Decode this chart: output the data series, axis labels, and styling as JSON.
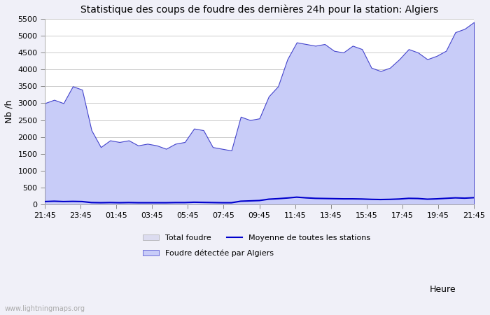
{
  "title": "Statistique des coups de foudre des dernières 24h pour la station: Algiers",
  "ylabel": "Nb /h",
  "xlabel": "Heure",
  "watermark": "www.lightningmaps.org",
  "x_labels": [
    "21:45",
    "23:45",
    "01:45",
    "03:45",
    "05:45",
    "07:45",
    "09:45",
    "11:45",
    "13:45",
    "15:45",
    "17:45",
    "19:45",
    "21:45"
  ],
  "ylim": [
    0,
    5500
  ],
  "yticks": [
    0,
    500,
    1000,
    1500,
    2000,
    2500,
    3000,
    3500,
    4000,
    4500,
    5000,
    5500
  ],
  "bg_color": "#f0f0f8",
  "plot_bg_color": "#ffffff",
  "grid_color": "#cccccc",
  "total_foudre_color": "#dcdcf0",
  "algiers_fill_color": "#c8ccf8",
  "algiers_edge_color": "#4444cc",
  "mean_line_color": "#0000cc",
  "total_foudre_values": [
    3000,
    3100,
    3000,
    3500,
    3400,
    2200,
    1700,
    1900,
    1850,
    1900,
    1750,
    1800,
    1750,
    1650,
    1800,
    1850,
    2250,
    2200,
    1700,
    1650,
    1600,
    2600,
    2500,
    2550,
    3200,
    3500,
    4300,
    4800,
    4750,
    4700,
    4750,
    4550,
    4500,
    4700,
    4600,
    4050,
    3950,
    4050,
    4300,
    4600,
    4500,
    4300,
    4400,
    4550,
    5100,
    5200,
    5400
  ],
  "algiers_values": [
    3000,
    3100,
    3000,
    3500,
    3400,
    2200,
    1700,
    1900,
    1850,
    1900,
    1750,
    1800,
    1750,
    1650,
    1800,
    1850,
    2250,
    2200,
    1700,
    1650,
    1600,
    2600,
    2500,
    2550,
    3200,
    3500,
    4300,
    4800,
    4750,
    4700,
    4750,
    4550,
    4500,
    4700,
    4600,
    4050,
    3950,
    4050,
    4300,
    4600,
    4500,
    4300,
    4400,
    4550,
    5100,
    5200,
    5400
  ],
  "mean_line_values": [
    90,
    100,
    90,
    95,
    90,
    60,
    55,
    60,
    55,
    60,
    55,
    55,
    55,
    55,
    60,
    60,
    70,
    65,
    60,
    55,
    55,
    100,
    110,
    120,
    160,
    175,
    195,
    220,
    200,
    185,
    180,
    175,
    170,
    170,
    165,
    155,
    150,
    155,
    165,
    185,
    180,
    160,
    170,
    185,
    200,
    190,
    205
  ]
}
